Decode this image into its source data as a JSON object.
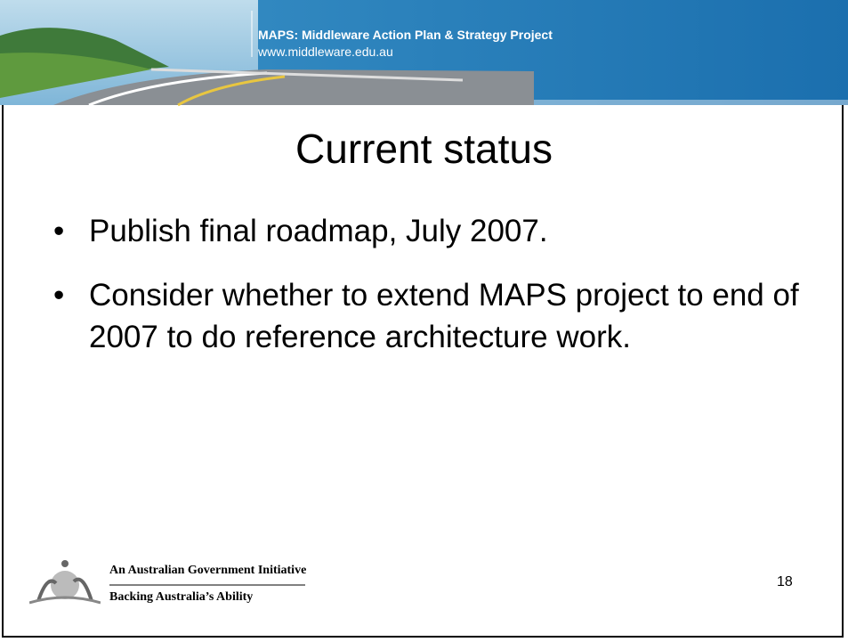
{
  "header": {
    "title": "MAPS: Middleware Action Plan & Strategy Project",
    "url": "www.middleware.edu.au"
  },
  "title": "Current status",
  "bullets": [
    "Publish final roadmap, July 2007.",
    "Consider whether to extend MAPS project to end of 2007 to do reference architecture work."
  ],
  "footer": {
    "line1": "An Australian Government Initiative",
    "line2": "Backing Australia’s Ability"
  },
  "page_number": 18
}
